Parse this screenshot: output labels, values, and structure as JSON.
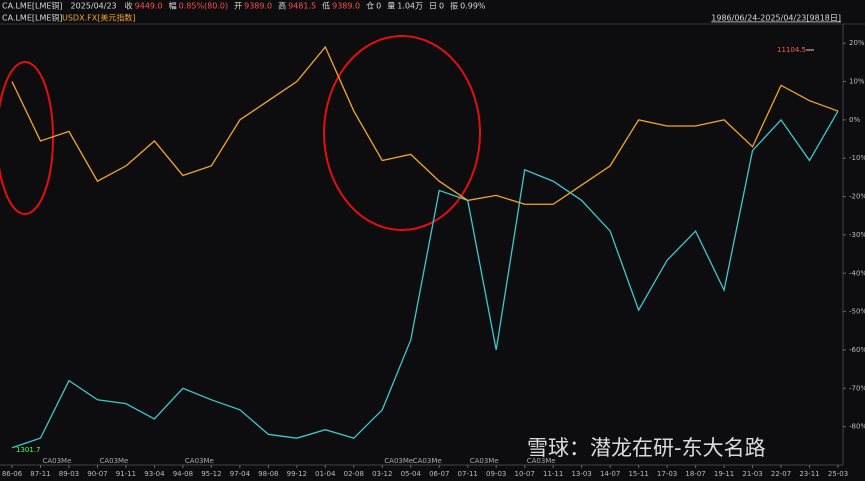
{
  "chart_data": {
    "type": "line",
    "header": {
      "symbol": "CA.LME[LME铜]",
      "date": "2025/04/23",
      "items": [
        {
          "label": "收",
          "value": "9449.0"
        },
        {
          "label": "幅",
          "value": "0.85%(80.0)"
        },
        {
          "label": "开",
          "value": "9389.0"
        },
        {
          "label": "高",
          "value": "9481.5"
        },
        {
          "label": "低",
          "value": "9389.0"
        },
        {
          "label": "仓",
          "value": "0"
        },
        {
          "label": "量",
          "value": "1.04万"
        },
        {
          "label": "日",
          "value": "0"
        },
        {
          "label": "振",
          "value": "0.99%"
        }
      ],
      "range": "1986/06/24-2025/04/23[9818日]"
    },
    "categories": [
      "86-06",
      "87-11",
      "89-03",
      "90-07",
      "91-11",
      "93-04",
      "94-08",
      "95-12",
      "97-04",
      "98-08",
      "99-12",
      "01-04",
      "02-08",
      "03-12",
      "05-04",
      "06-07",
      "07-11",
      "09-03",
      "10-07",
      "11-11",
      "13-03",
      "14-07",
      "15-11",
      "17-03",
      "18-07",
      "19-11",
      "21-03",
      "22-07",
      "23-11",
      "25-03"
    ],
    "series": [
      {
        "name": "CA.LME[LME铜]",
        "color": "#3fc7d0",
        "values": [
          -85.5,
          -83,
          -68,
          -73,
          -74,
          -78,
          -70,
          -73,
          -75.6,
          -82,
          -83,
          -80.8,
          -83,
          -75.6,
          -57.4,
          -18.4,
          -21,
          -60,
          -13,
          -16,
          -21,
          -29,
          -49.6,
          -36.6,
          -29,
          -44.4,
          -8,
          0,
          -10.6,
          2.3
        ]
      },
      {
        "name": "USDX.FX[美元指数]",
        "color": "#f5a623",
        "values": [
          10,
          -5.5,
          -3,
          -16,
          -12,
          -5.5,
          -14.5,
          -12,
          0,
          5,
          10,
          19,
          2.3,
          -10.6,
          -9,
          -16,
          -21,
          -19.7,
          -22,
          -22,
          -17,
          -12,
          0,
          -1.6,
          -1.6,
          0,
          -7,
          9,
          5,
          2.3
        ]
      }
    ],
    "ylim": [
      -90,
      25
    ],
    "yticks": [
      {
        "value": 20,
        "label": "20%"
      },
      {
        "value": 10,
        "label": "10%"
      },
      {
        "value": 0,
        "label": "0%"
      },
      {
        "value": -10,
        "label": "-10%"
      },
      {
        "value": -20,
        "label": "-20%"
      },
      {
        "value": -30,
        "label": "-30%"
      },
      {
        "value": -40,
        "label": "-40%"
      },
      {
        "value": -50,
        "label": "-50%"
      },
      {
        "value": -60,
        "label": "-60%"
      },
      {
        "value": -70,
        "label": "-70%"
      },
      {
        "value": -80,
        "label": "-80%"
      }
    ],
    "grid": false,
    "annotations": [
      "11104.5",
      "1301.7"
    ],
    "contract_labels": [
      "CA03Me",
      "CA03Me",
      "CA03Me",
      "CA03Me",
      "CA03Me",
      "CA03Me",
      "CA03Me"
    ],
    "watermark": "雪球：潜龙在研-东大名路"
  }
}
